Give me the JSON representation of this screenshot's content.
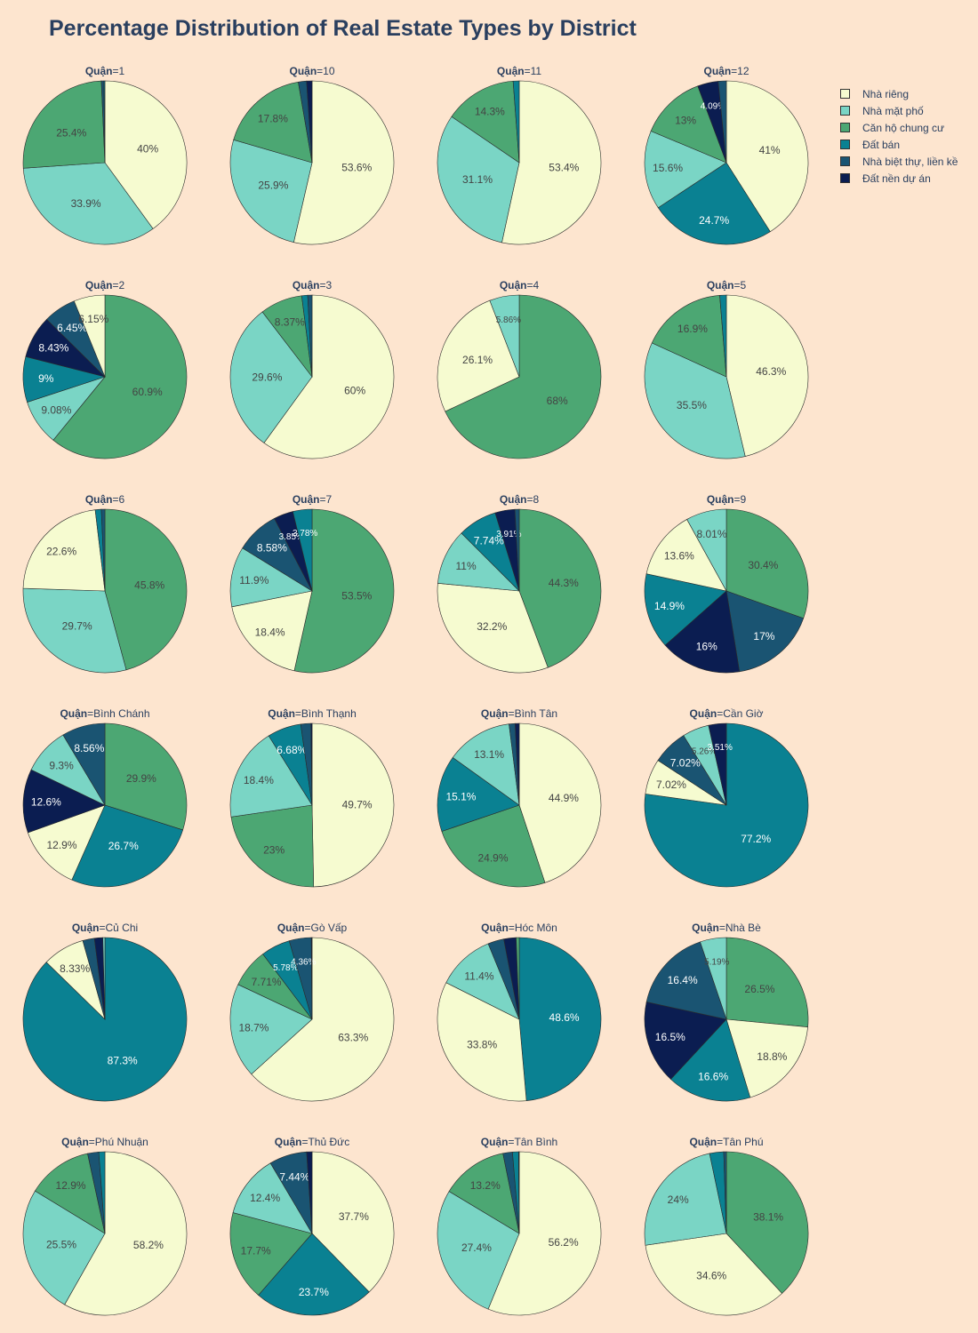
{
  "chart_data": {
    "type": "pie",
    "title": "Percentage Distribution of Real Estate Types by District",
    "facet_label": "Quận",
    "legend": {
      "placement": "top-right",
      "items": [
        "Nhà riêng",
        "Nhà mặt phố",
        "Căn hộ chung cư",
        "Đất bán",
        "Nhà biệt thự, liền kề",
        "Đất nền dự án"
      ]
    },
    "colors": [
      "#f6fbd0",
      "#7ad5c5",
      "#4ca773",
      "#0a8192",
      "#1a5472",
      "#0b1d51"
    ],
    "label_colors": [
      "#444444",
      "#444444",
      "#444444",
      "#ffffff",
      "#ffffff",
      "#ffffff"
    ],
    "facets": [
      {
        "district": "1",
        "values": [
          40,
          33.9,
          25.4,
          0.2,
          0.5,
          0
        ]
      },
      {
        "district": "10",
        "values": [
          53.6,
          25.9,
          17.8,
          0,
          1.63,
          1.07
        ]
      },
      {
        "district": "11",
        "values": [
          53.4,
          31.1,
          14.3,
          1.19,
          0,
          0
        ]
      },
      {
        "district": "12",
        "values": [
          41,
          15.6,
          13,
          24.7,
          1.6,
          4.09
        ]
      },
      {
        "district": "2",
        "values": [
          6.15,
          9.08,
          60.9,
          9,
          6.45,
          8.43
        ]
      },
      {
        "district": "3",
        "values": [
          60,
          29.6,
          8.37,
          1.17,
          0.86,
          0
        ]
      },
      {
        "district": "4",
        "values": [
          26.1,
          5.86,
          68,
          0,
          0,
          0
        ]
      },
      {
        "district": "5",
        "values": [
          46.3,
          35.5,
          16.9,
          1.3,
          0,
          0
        ]
      },
      {
        "district": "6",
        "values": [
          22.6,
          29.7,
          45.8,
          1.2,
          0.7,
          0
        ]
      },
      {
        "district": "7",
        "values": [
          18.4,
          11.9,
          53.5,
          3.78,
          8.58,
          3.85
        ]
      },
      {
        "district": "8",
        "values": [
          32.2,
          11,
          44.3,
          7.74,
          0.85,
          3.91
        ]
      },
      {
        "district": "9",
        "values": [
          13.6,
          8.01,
          30.4,
          14.9,
          17,
          16
        ]
      },
      {
        "district": "Bình Chánh",
        "values": [
          12.9,
          9.3,
          29.9,
          26.7,
          8.56,
          12.6
        ]
      },
      {
        "district": "Bình Thạnh",
        "values": [
          49.7,
          18.4,
          23,
          6.68,
          1.99,
          0.23
        ]
      },
      {
        "district": "Bình Tân",
        "values": [
          44.9,
          13.1,
          24.9,
          15.1,
          1.2,
          0.8
        ]
      },
      {
        "district": "Cần Giờ",
        "values": [
          7.02,
          5.26,
          0,
          77.2,
          7.02,
          3.51
        ]
      },
      {
        "district": "Củ Chi",
        "values": [
          8.33,
          0.4,
          0,
          87.3,
          2.31,
          1.66
        ]
      },
      {
        "district": "Gò Vấp",
        "values": [
          63.3,
          18.7,
          7.71,
          5.78,
          4.36,
          0.15
        ]
      },
      {
        "district": "Hóc Môn",
        "values": [
          33.8,
          11.4,
          0.6,
          48.6,
          3.17,
          2.43
        ]
      },
      {
        "district": "Nhà Bè",
        "values": [
          18.8,
          5.19,
          26.5,
          16.6,
          16.4,
          16.5
        ]
      },
      {
        "district": "Phú Nhuận",
        "values": [
          58.2,
          25.5,
          12.9,
          1.2,
          2.2,
          0
        ]
      },
      {
        "district": "Thủ Đức",
        "values": [
          37.7,
          12.4,
          17.7,
          23.7,
          7.44,
          1.06
        ]
      },
      {
        "district": "Tân Bình",
        "values": [
          56.2,
          27.4,
          13.2,
          1.2,
          1.88,
          0.12
        ]
      },
      {
        "district": "Tân Phú",
        "values": [
          34.6,
          24,
          38.1,
          2.78,
          0.52,
          0
        ]
      }
    ]
  }
}
